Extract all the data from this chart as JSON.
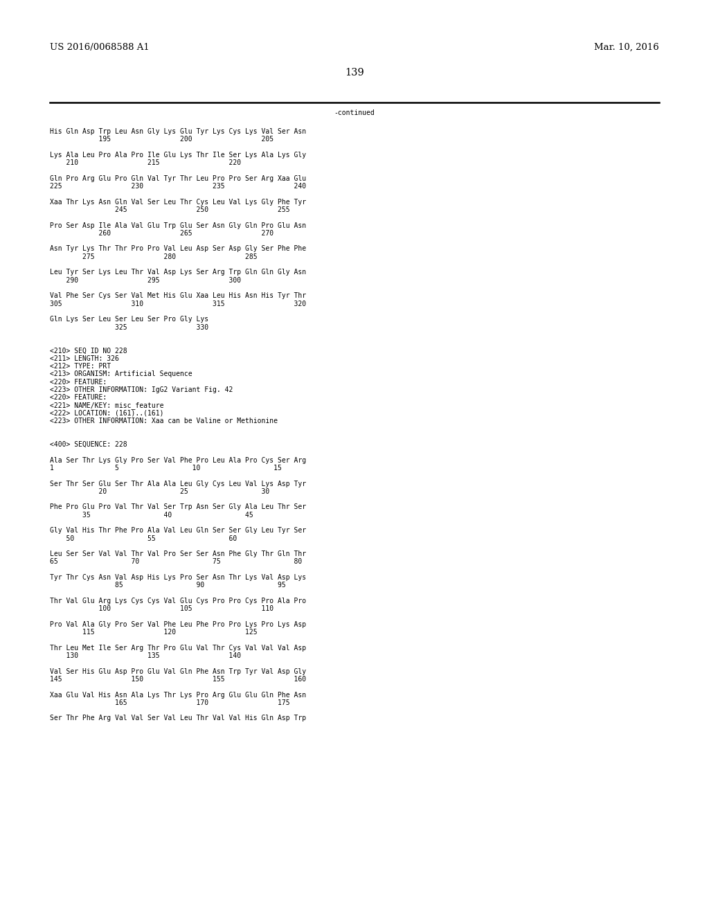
{
  "bg_color": "#ffffff",
  "header_left": "US 2016/0068588 A1",
  "header_right": "Mar. 10, 2016",
  "page_number": "139",
  "continued_label": "-continued",
  "font_size": 7.0,
  "header_font_size": 9.5,
  "page_num_font_size": 10.5,
  "content_lines": [
    "His Gln Asp Trp Leu Asn Gly Lys Glu Tyr Lys Cys Lys Val Ser Asn",
    "            195                 200                 205",
    "",
    "Lys Ala Leu Pro Ala Pro Ile Glu Lys Thr Ile Ser Lys Ala Lys Gly",
    "    210                 215                 220",
    "",
    "Gln Pro Arg Glu Pro Gln Val Tyr Thr Leu Pro Pro Ser Arg Xaa Glu",
    "225                 230                 235                 240",
    "",
    "Xaa Thr Lys Asn Gln Val Ser Leu Thr Cys Leu Val Lys Gly Phe Tyr",
    "                245                 250                 255",
    "",
    "Pro Ser Asp Ile Ala Val Glu Trp Glu Ser Asn Gly Gln Pro Glu Asn",
    "            260                 265                 270",
    "",
    "Asn Tyr Lys Thr Thr Pro Pro Val Leu Asp Ser Asp Gly Ser Phe Phe",
    "        275                 280                 285",
    "",
    "Leu Tyr Ser Lys Leu Thr Val Asp Lys Ser Arg Trp Gln Gln Gly Asn",
    "    290                 295                 300",
    "",
    "Val Phe Ser Cys Ser Val Met His Glu Xaa Leu His Asn His Tyr Thr",
    "305                 310                 315                 320",
    "",
    "Gln Lys Ser Leu Ser Leu Ser Pro Gly Lys",
    "                325                 330",
    "",
    "",
    "<210> SEQ ID NO 228",
    "<211> LENGTH: 326",
    "<212> TYPE: PRT",
    "<213> ORGANISM: Artificial Sequence",
    "<220> FEATURE:",
    "<223> OTHER INFORMATION: IgG2 Variant Fig. 42",
    "<220> FEATURE:",
    "<221> NAME/KEY: misc_feature",
    "<222> LOCATION: (161)..(161)",
    "<223> OTHER INFORMATION: Xaa can be Valine or Methionine",
    "",
    "",
    "<400> SEQUENCE: 228",
    "",
    "Ala Ser Thr Lys Gly Pro Ser Val Phe Pro Leu Ala Pro Cys Ser Arg",
    "1               5                  10                  15",
    "",
    "Ser Thr Ser Glu Ser Thr Ala Ala Leu Gly Cys Leu Val Lys Asp Tyr",
    "            20                  25                  30",
    "",
    "Phe Pro Glu Pro Val Thr Val Ser Trp Asn Ser Gly Ala Leu Thr Ser",
    "        35                  40                  45",
    "",
    "Gly Val His Thr Phe Pro Ala Val Leu Gln Ser Ser Gly Leu Tyr Ser",
    "    50                  55                  60",
    "",
    "Leu Ser Ser Val Val Thr Val Pro Ser Ser Asn Phe Gly Thr Gln Thr",
    "65                  70                  75                  80",
    "",
    "Tyr Thr Cys Asn Val Asp His Lys Pro Ser Asn Thr Lys Val Asp Lys",
    "                85                  90                  95",
    "",
    "Thr Val Glu Arg Lys Cys Cys Val Glu Cys Pro Pro Cys Pro Ala Pro",
    "            100                 105                 110",
    "",
    "Pro Val Ala Gly Pro Ser Val Phe Leu Phe Pro Pro Lys Pro Lys Asp",
    "        115                 120                 125",
    "",
    "Thr Leu Met Ile Ser Arg Thr Pro Glu Val Thr Cys Val Val Val Asp",
    "    130                 135                 140",
    "",
    "Val Ser His Glu Asp Pro Glu Val Gln Phe Asn Trp Tyr Val Asp Gly",
    "145                 150                 155                 160",
    "",
    "Xaa Glu Val His Asn Ala Lys Thr Lys Pro Arg Glu Glu Gln Phe Asn",
    "                165                 170                 175",
    "",
    "Ser Thr Phe Arg Val Val Ser Val Leu Thr Val Val His Gln Asp Trp"
  ]
}
